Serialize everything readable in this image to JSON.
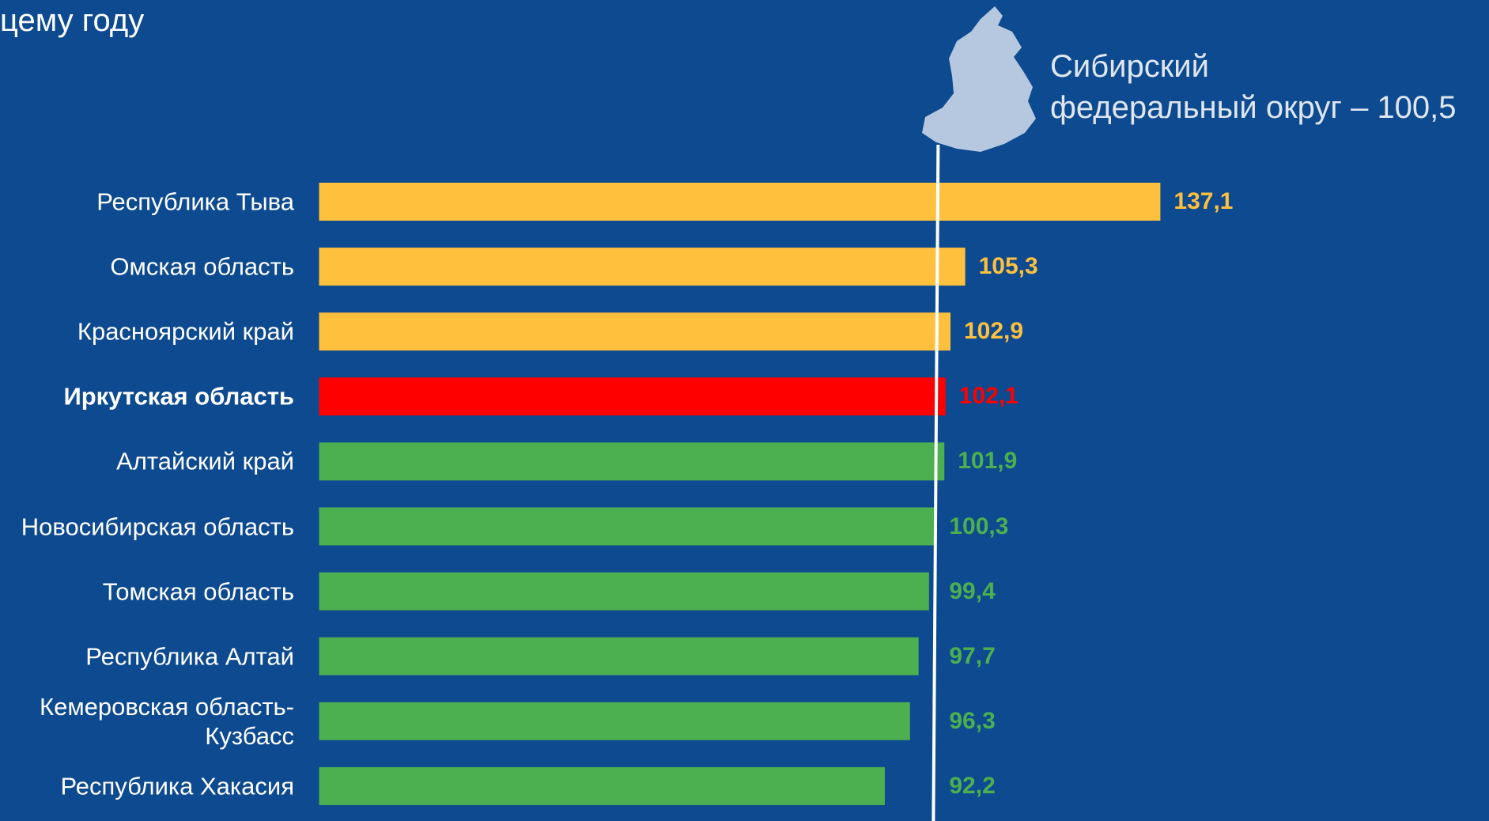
{
  "chart_data": {
    "type": "bar",
    "orientation": "horizontal",
    "title": "цему году",
    "categories": [
      "Республика Тыва",
      "Омская область",
      "Красноярский край",
      "Иркутская область",
      "Алтайский край",
      "Новосибирская область",
      "Томская область",
      "Республика Алтай",
      "Кемеровская область-\nКузбасс",
      "Республика Хакасия"
    ],
    "values": [
      137.1,
      105.3,
      102.9,
      102.1,
      101.9,
      100.3,
      99.4,
      97.7,
      96.3,
      92.2
    ],
    "value_labels": [
      "137,1",
      "105,3",
      "102,9",
      "102,1",
      "101,9",
      "100,3",
      "99,4",
      "97,7",
      "96,3",
      "92,2"
    ],
    "colors": [
      "#ffc03e",
      "#ffc03e",
      "#ffc03e",
      "#ff0000",
      "#4caf50",
      "#4caf50",
      "#4caf50",
      "#4caf50",
      "#4caf50",
      "#4caf50"
    ],
    "highlight": 3,
    "reference": {
      "value": 100.5,
      "annotation": [
        "Сибирский",
        "федеральный округ – 100,5"
      ]
    }
  }
}
